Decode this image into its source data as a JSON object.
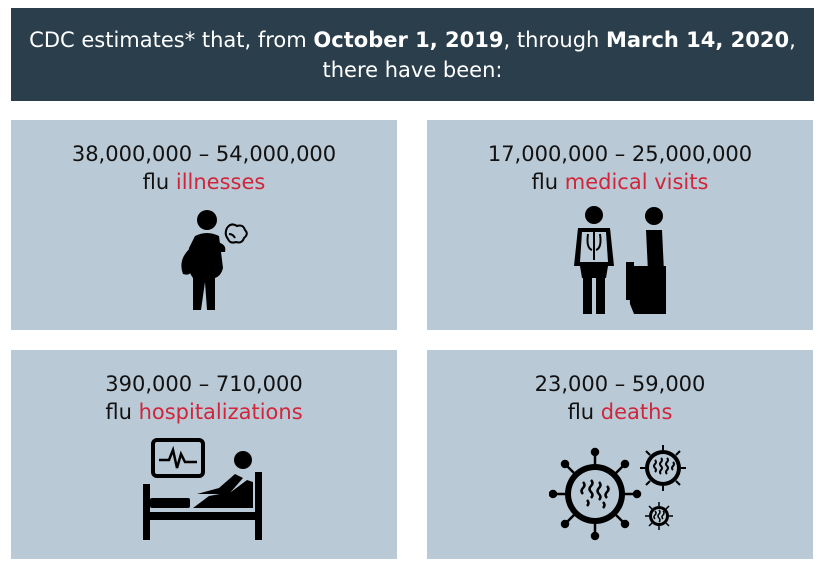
{
  "header": {
    "part1": "CDC estimates* that, from ",
    "date_start": "October 1, 2019",
    "part2": ", through ",
    "date_end": "March 14, 2020",
    "part3": ",",
    "line2": "there have been:"
  },
  "cards": [
    {
      "range": "38,000,000 – 54,000,000",
      "prefix": "flu ",
      "term": "illnesses",
      "icon": "sick-person-coughing-icon"
    },
    {
      "range": "17,000,000 – 25,000,000",
      "prefix": "flu ",
      "term": "medical visits",
      "icon": "doctor-and-patient-icon"
    },
    {
      "range": "390,000 – 710,000",
      "prefix": "flu ",
      "term": "hospitalizations",
      "icon": "hospital-bed-monitor-icon"
    },
    {
      "range": "23,000 – 59,000",
      "prefix": "flu ",
      "term": "deaths",
      "icon": "virus-particles-icon"
    }
  ],
  "colors": {
    "header_bg": "#2b3e4b",
    "card_bg": "#b9c9d5",
    "accent": "#d0253b"
  }
}
